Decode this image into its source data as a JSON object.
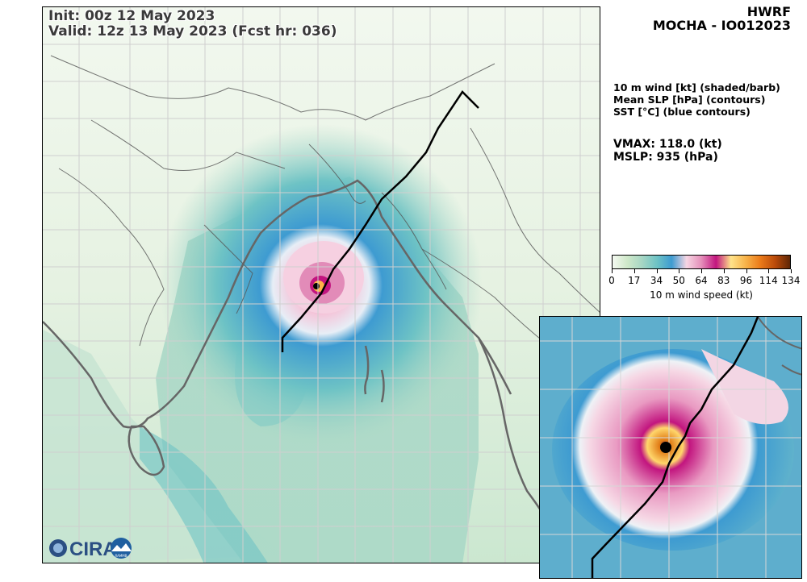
{
  "header": {
    "init": "Init:   00z 12 May 2023",
    "valid": "Valid: 12z 13 May 2023 (Fcst hr: 036)",
    "model": "HWRF",
    "storm": "MOCHA - IO012023"
  },
  "legend_text": {
    "line1": "10 m wind [kt] (shaded/barb)",
    "line2": "Mean SLP [hPa] (contours)",
    "line3": "SST [°C] (blue contours)"
  },
  "stats": {
    "vmax": "VMAX: 118.0 (kt)",
    "mslp": "MSLP:  935 (hPa)"
  },
  "colorbar": {
    "ticks": [
      "0",
      "17",
      "34",
      "50",
      "64",
      "83",
      "96",
      "114",
      "134"
    ],
    "tick_values": [
      0,
      17,
      34,
      50,
      64,
      83,
      96,
      114,
      134
    ],
    "label": "10 m wind speed (kt)",
    "colors": [
      "#f4f9f1",
      "#cfe8c9",
      "#a6d6c4",
      "#6ec3c5",
      "#3e9bd1",
      "#f7d6e3",
      "#e58fba",
      "#c2157f",
      "#ffe38a",
      "#f7b34a",
      "#ea7a19",
      "#b94a0a",
      "#5e2606"
    ]
  },
  "logo": {
    "text": "CIRA",
    "badge": "RAMMB"
  },
  "map": {
    "track_color": "#000000",
    "border_color": "#555555",
    "coast_color": "#666666"
  }
}
